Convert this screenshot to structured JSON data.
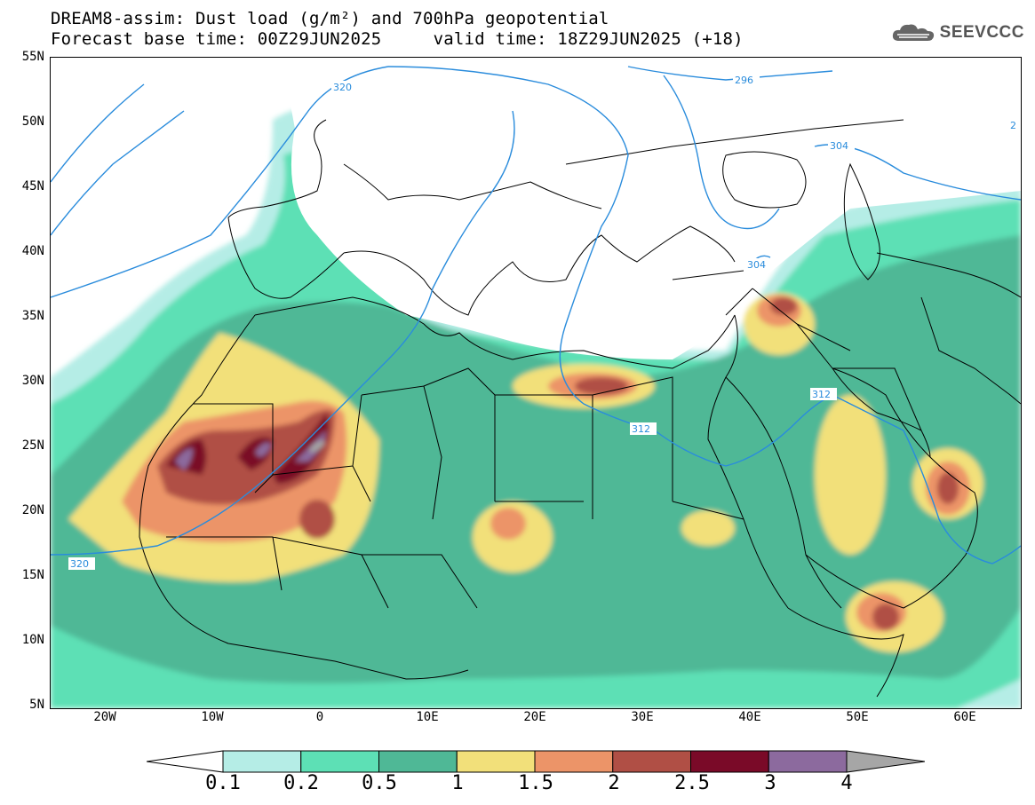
{
  "header": {
    "title_line1": "DREAM8-assim: Dust load (g/m²) and 700hPa geopotential",
    "title_line2": "Forecast base time: 00Z29JUN2025     valid time: 18Z29JUN2025 (+18)"
  },
  "logo": {
    "text": "SEEVCCC",
    "icon": "cloud-icon"
  },
  "map": {
    "lat_labels": [
      "55N",
      "50N",
      "45N",
      "40N",
      "35N",
      "30N",
      "25N",
      "20N",
      "15N",
      "10N",
      "5N"
    ],
    "lon_labels": [
      "20W",
      "10W",
      "0",
      "10E",
      "20E",
      "30E",
      "40E",
      "50E",
      "60E"
    ],
    "lat_range": [
      5,
      55
    ],
    "lon_range": [
      -25,
      65
    ],
    "contour_labels": [
      "320",
      "296",
      "304",
      "312",
      "304",
      "312",
      "320",
      "2"
    ],
    "contour_color": "#2a8cdc"
  },
  "legend": {
    "levels": [
      "0.1",
      "0.2",
      "0.5",
      "1",
      "1.5",
      "2",
      "2.5",
      "3",
      "4"
    ],
    "colors": [
      "#b5ede6",
      "#5de0b5",
      "#4fb896",
      "#f2e07a",
      "#ec9468",
      "#b04f45",
      "#7a0a28",
      "#8c6a9e"
    ],
    "under_color": "#ffffff",
    "over_color": "#a6a6a6"
  }
}
